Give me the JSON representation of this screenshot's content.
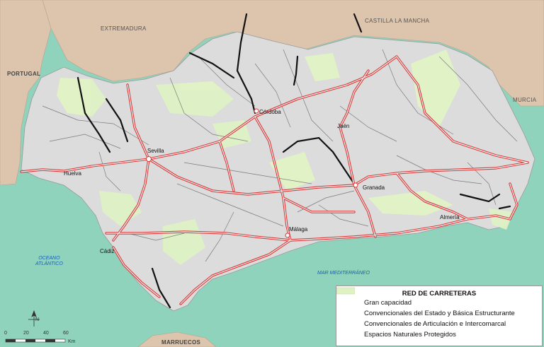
{
  "map": {
    "regions": {
      "extremadura": "EXTREMADURA",
      "castilla": "CASTILLA LA MANCHA",
      "portugal": "PORTUGAL",
      "murcia": "MURCIA",
      "marruecos": "MARRUECOS"
    },
    "seas": {
      "oceano_line1": "OCEANO",
      "oceano_line2": "ATLÁNTICO",
      "mediterraneo": "MAR MEDITERRÁNEO"
    },
    "cities": {
      "cordoba": "Córdoba",
      "jaen": "Jaén",
      "sevilla": "Sevilla",
      "huelva": "Huelva",
      "granada": "Granada",
      "almeria": "Almería",
      "malaga": "Málaga",
      "cadiz": "Cádiz"
    },
    "colors": {
      "sea": "#8fd3bd",
      "neighbor_land": "#dcc4ad",
      "andalucia_land": "#dcdcdc",
      "protected_area": "#dff2c4",
      "gran_capacidad": "#d93a3a",
      "convencionales_estado": "#111111",
      "articulacion": "#5a5a5a"
    }
  },
  "legend": {
    "title": "RED DE CARRETERAS",
    "items": {
      "gran_capacidad": "Gran capacidad",
      "estado": "Convencionales del Estado y Básica Estructurante",
      "articulacion": "Convencionales de Articulación e Intercomarcal",
      "espacios": "Espacios Naturales Protegidos"
    }
  },
  "compass": {
    "label": "N"
  },
  "scale_bar": {
    "ticks": [
      "0",
      "20",
      "40",
      "60"
    ],
    "unit": "Km"
  }
}
